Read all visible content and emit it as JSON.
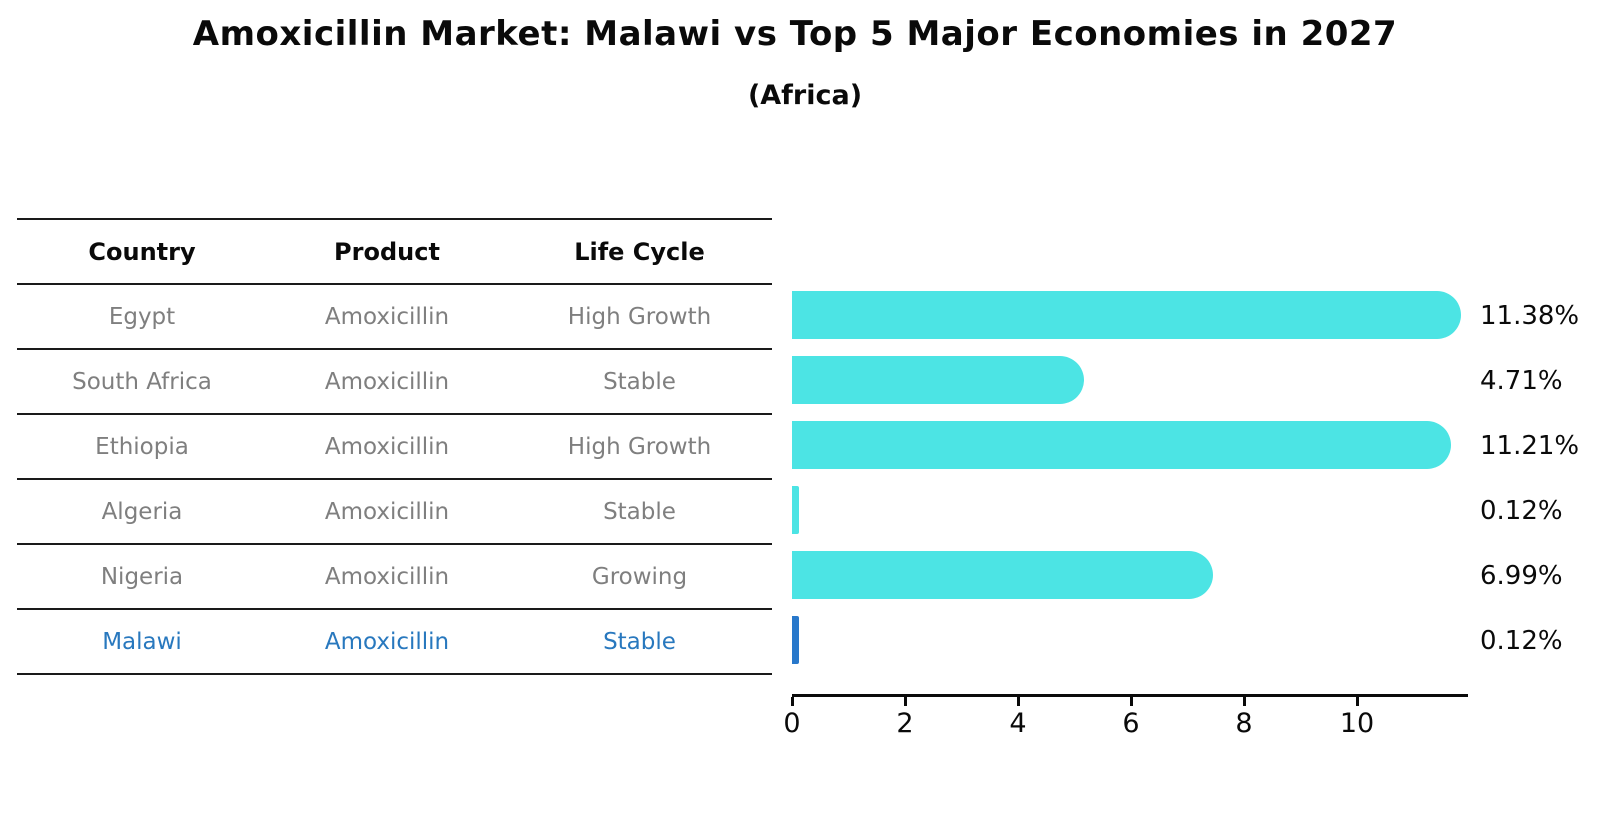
{
  "title": "Amoxicillin Market: Malawi vs Top 5 Major Economies in 2027",
  "subtitle": "(Africa)",
  "table": {
    "headers": [
      "Country",
      "Product",
      "Life Cycle"
    ],
    "rows": [
      {
        "country": "Egypt",
        "product": "Amoxicillin",
        "life_cycle": "High Growth",
        "highlight": false
      },
      {
        "country": "South Africa",
        "product": "Amoxicillin",
        "life_cycle": "Stable",
        "highlight": false
      },
      {
        "country": "Ethiopia",
        "product": "Amoxicillin",
        "life_cycle": "High Growth",
        "highlight": false
      },
      {
        "country": "Algeria",
        "product": "Amoxicillin",
        "life_cycle": "Stable",
        "highlight": false
      },
      {
        "country": "Nigeria",
        "product": "Amoxicillin",
        "life_cycle": "Growing",
        "highlight": false
      },
      {
        "country": "Malawi",
        "product": "Amoxicillin",
        "life_cycle": "Stable",
        "highlight": true
      }
    ]
  },
  "chart_data": {
    "type": "bar",
    "orientation": "horizontal",
    "categories": [
      "Egypt",
      "South Africa",
      "Ethiopia",
      "Algeria",
      "Nigeria",
      "Malawi"
    ],
    "values": [
      11.38,
      4.71,
      11.21,
      0.12,
      6.99,
      0.12
    ],
    "value_labels": [
      "11.38%",
      "4.71%",
      "11.21%",
      "0.12%",
      "6.99%",
      "0.12%"
    ],
    "xticks": [
      0,
      2,
      4,
      6,
      8,
      10
    ],
    "xlim": [
      0,
      12
    ],
    "grid": false,
    "legend": "none",
    "bar_color": "#4ce4e4",
    "highlight_color": "#2878cb",
    "highlight_index": 5,
    "text_color": "#0a0a0a",
    "muted_text_color": "#7f7f7f",
    "highlight_text_color": "#2878be"
  }
}
